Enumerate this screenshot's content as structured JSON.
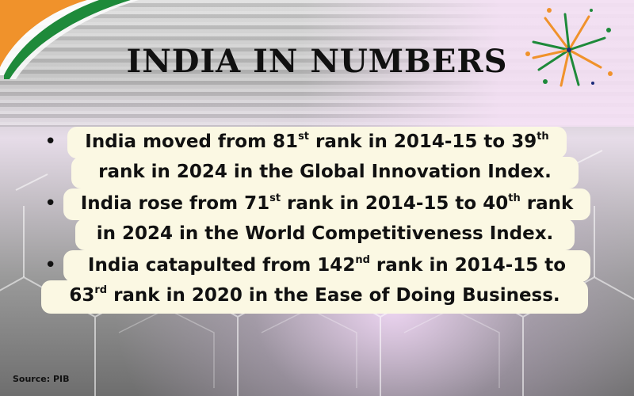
{
  "title": "INDIA IN NUMBERS",
  "bullets": [
    {
      "lines": [
        {
          "parts": [
            "India moved from 81",
            "st",
            " rank in 2014-15 to 39",
            "th",
            ""
          ]
        },
        {
          "parts": [
            "rank in 2024 in the Global Innovation Index."
          ]
        }
      ]
    },
    {
      "lines": [
        {
          "parts": [
            "India rose from 71",
            "st",
            " rank in 2014-15 to 40",
            "th",
            " rank"
          ]
        },
        {
          "parts": [
            "in 2024 in the World Competitiveness Index."
          ]
        }
      ]
    },
    {
      "lines": [
        {
          "parts": [
            "India catapulted from 142",
            "nd",
            " rank in 2014-15 to"
          ]
        },
        {
          "parts": [
            "63",
            "rd",
            " rank in 2020 in the Ease of Doing Business."
          ]
        }
      ]
    }
  ],
  "bullet_glyph": "•",
  "source": "Source:  PIB",
  "colors": {
    "saffron": "#f0922b",
    "green": "#1e8a3a",
    "box": "#fbf8e3"
  }
}
